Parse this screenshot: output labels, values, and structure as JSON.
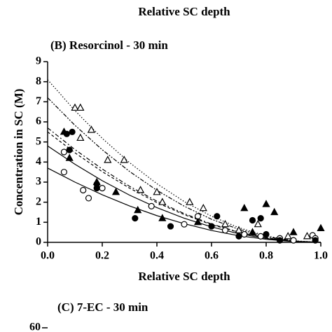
{
  "header": {
    "axis_label": "Relative SC depth"
  },
  "chart_data": {
    "type": "scatter",
    "title": "(B) Resorcinol - 30 min",
    "x_label": "Relative SC depth",
    "y_label": "Concentration in SC (M)",
    "xlim": [
      0,
      1
    ],
    "ylim": [
      0,
      9
    ],
    "xticks": [
      {
        "value": 0,
        "label": "0.0"
      },
      {
        "value": 0.2,
        "label": "0.2"
      },
      {
        "value": 0.4,
        "label": "0.4"
      },
      {
        "value": 0.6,
        "label": "0.6"
      },
      {
        "value": 0.8,
        "label": "0.8"
      },
      {
        "value": 1,
        "label": "1.0"
      }
    ],
    "yticks": [
      0,
      1,
      2,
      3,
      4,
      5,
      6,
      7,
      8,
      9
    ],
    "series": [
      {
        "marker": "open-circle",
        "color": "#000000",
        "x": [
          0.06,
          0.06,
          0.13,
          0.15,
          0.2,
          0.38,
          0.5,
          0.55,
          0.65,
          0.72,
          0.78,
          0.85,
          0.9,
          0.97,
          0.98
        ],
        "values": [
          4.5,
          3.5,
          2.6,
          2.2,
          2.7,
          1.8,
          0.9,
          1.3,
          0.6,
          0.4,
          0.3,
          0.2,
          0.1,
          0.35,
          0.2
        ]
      },
      {
        "marker": "filled-circle",
        "color": "#000000",
        "x": [
          0.07,
          0.09,
          0.08,
          0.18,
          0.18,
          0.32,
          0.45,
          0.6,
          0.62,
          0.7,
          0.75,
          0.78,
          0.8,
          0.85,
          0.98
        ],
        "values": [
          5.4,
          5.5,
          4.6,
          2.9,
          2.7,
          1.2,
          0.8,
          0.8,
          1.3,
          0.3,
          1.1,
          1.2,
          0.4,
          0.1,
          0.1
        ]
      },
      {
        "marker": "filled-triangle",
        "color": "#000000",
        "x": [
          0.06,
          0.08,
          0.18,
          0.25,
          0.33,
          0.42,
          0.55,
          0.72,
          0.75,
          0.8,
          0.83,
          0.9,
          1.0
        ],
        "values": [
          5.5,
          4.2,
          3.0,
          2.5,
          1.6,
          1.2,
          1.0,
          1.7,
          0.5,
          1.9,
          1.5,
          0.5,
          0.7
        ]
      },
      {
        "marker": "open-triangle",
        "color": "#000000",
        "x": [
          0.1,
          0.12,
          0.12,
          0.16,
          0.22,
          0.28,
          0.34,
          0.4,
          0.42,
          0.52,
          0.57,
          0.65,
          0.7,
          0.77,
          0.88,
          0.95
        ],
        "values": [
          6.7,
          6.7,
          5.2,
          5.6,
          4.1,
          4.1,
          2.6,
          2.5,
          2.0,
          2.0,
          1.7,
          0.9,
          0.6,
          0.9,
          0.3,
          0.3
        ]
      }
    ],
    "curve_x": [
      0,
      0.1,
      0.2,
      0.3,
      0.4,
      0.5,
      0.6,
      0.7,
      0.8,
      0.9,
      1.0
    ],
    "curves": [
      {
        "dash": "none",
        "values": [
          3.7,
          3.0,
          2.37,
          1.81,
          1.33,
          0.93,
          0.59,
          0.33,
          0.15,
          0.04,
          0
        ]
      },
      {
        "dash": "none",
        "values": [
          4.8,
          3.89,
          3.07,
          2.35,
          1.73,
          1.2,
          0.77,
          0.43,
          0.19,
          0.05,
          0
        ]
      },
      {
        "dash": "4 3",
        "values": [
          5.5,
          4.46,
          3.52,
          2.7,
          1.98,
          1.38,
          0.88,
          0.5,
          0.22,
          0.06,
          0
        ]
      },
      {
        "dash": "6 3 2 3",
        "values": [
          5.7,
          4.62,
          3.65,
          2.79,
          2.05,
          1.43,
          0.91,
          0.51,
          0.23,
          0.06,
          0
        ]
      },
      {
        "dash": "6 2 2 2 2 2",
        "values": [
          7.2,
          5.83,
          4.61,
          3.53,
          2.59,
          1.8,
          1.15,
          0.65,
          0.29,
          0.07,
          0
        ]
      },
      {
        "dash": "1.5 2.5",
        "values": [
          8.1,
          6.56,
          5.18,
          3.97,
          2.92,
          2.03,
          1.3,
          0.73,
          0.32,
          0.08,
          0
        ]
      }
    ]
  },
  "next_panel": {
    "title": "(C) 7-EC - 30 min",
    "tick": 60
  }
}
